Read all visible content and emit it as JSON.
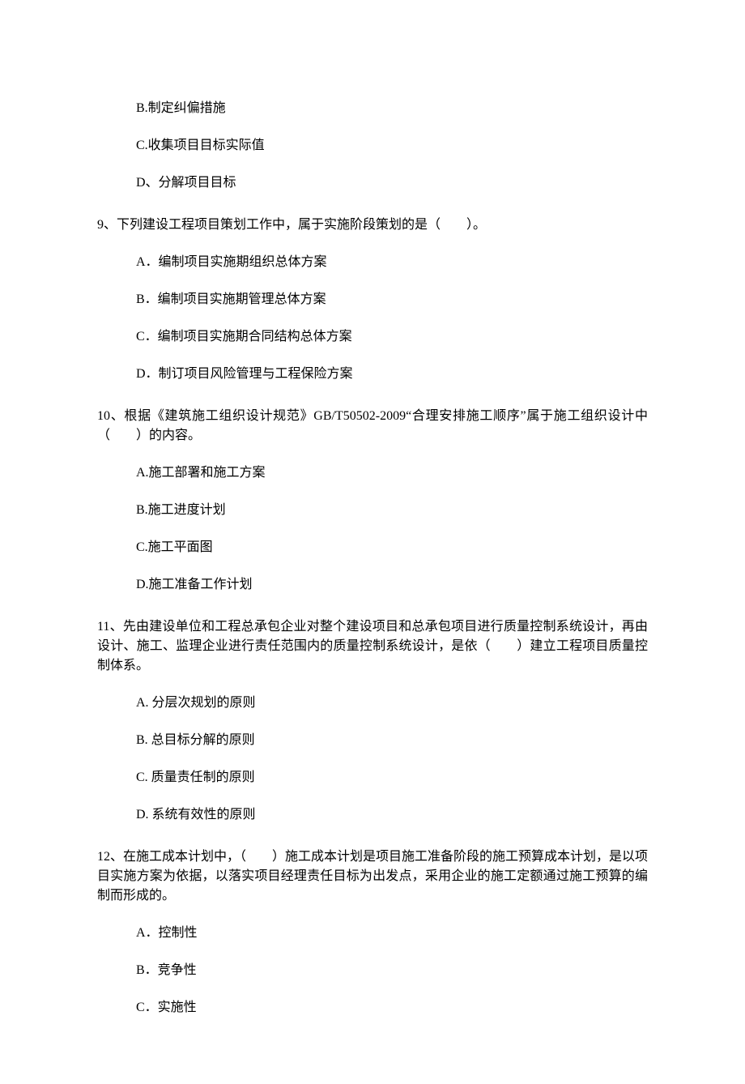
{
  "orphan_options": {
    "b": "B.制定纠偏措施",
    "c": "C.收集项目目标实际值",
    "d": "D、分解项目目标"
  },
  "q9": {
    "stem": "9、下列建设工程项目策划工作中，属于实施阶段策划的是（　　）。",
    "a": "A．编制项目实施期组织总体方案",
    "b": "B．编制项目实施期管理总体方案",
    "c": "C．编制项目实施期合同结构总体方案",
    "d": "D．制订项目风险管理与工程保险方案"
  },
  "q10": {
    "stem": "10、根据《建筑施工组织设计规范》GB/T50502-2009“合理安排施工顺序”属于施工组织设计中（　　）的内容。",
    "a": "A.施工部署和施工方案",
    "b": "B.施工进度计划",
    "c": "C.施工平面图",
    "d": "D.施工准备工作计划"
  },
  "q11": {
    "stem": "11、先由建设单位和工程总承包企业对整个建设项目和总承包项目进行质量控制系统设计，再由设计、施工、监理企业进行责任范围内的质量控制系统设计，是依（　　）建立工程项目质量控制体系。",
    "a": "A.  分层次规划的原则",
    "b": "B.  总目标分解的原则",
    "c": "C.  质量责任制的原则",
    "d": "D.  系统有效性的原则"
  },
  "q12": {
    "stem": "12、在施工成本计划中，（　　）施工成本计划是项目施工准备阶段的施工预算成本计划，是以项目实施方案为依据，以落实项目经理责任目标为出发点，采用企业的施工定额通过施工预算的编制而形成的。",
    "a": "A．控制性",
    "b": "B．竞争性",
    "c": "C．实施性"
  }
}
